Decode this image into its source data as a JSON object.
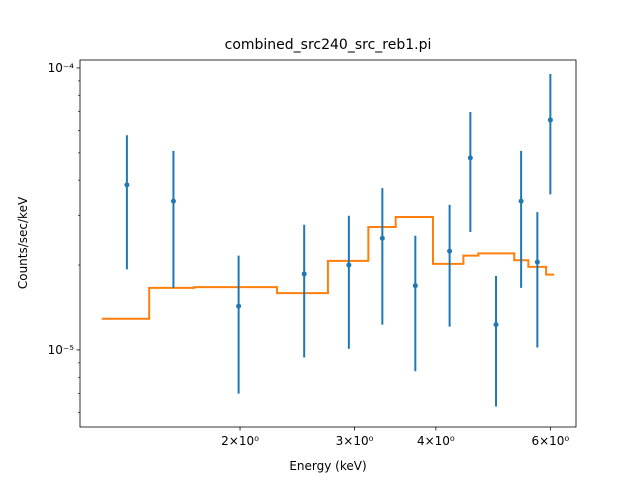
{
  "chart_data": {
    "type": "errorbar",
    "title": "combined_src240_src_reb1.pi",
    "xlabel": "Energy (keV)",
    "ylabel": "Counts/sec/keV",
    "xscale": "log",
    "yscale": "log",
    "xlim": [
      1.135,
      6.57
    ],
    "ylim": [
      5.33e-06,
      0.0001067
    ],
    "xticks": [
      {
        "value": 2,
        "label": "2×10⁰"
      },
      {
        "value": 3,
        "label": "3×10⁰"
      },
      {
        "value": 4,
        "label": "4×10⁰"
      },
      {
        "value": 6,
        "label": "6×10⁰"
      }
    ],
    "yticks": [
      {
        "value": 1e-05,
        "label": "10⁻⁵"
      },
      {
        "value": 0.0001,
        "label": "10⁻⁴"
      }
    ],
    "yminorticks": [
      6e-06,
      7e-06,
      8e-06,
      9e-06,
      2e-05,
      3e-05,
      4e-05,
      5e-05,
      6e-05,
      7e-05,
      8e-05,
      9e-05
    ],
    "series": [
      {
        "type": "errorbar",
        "color": "#1f77b4",
        "x": [
          1.34,
          1.58,
          1.99,
          2.51,
          2.94,
          3.31,
          3.72,
          4.2,
          4.52,
          4.95,
          5.41,
          5.73,
          6.0
        ],
        "values": [
          3.85e-05,
          3.37e-05,
          1.43e-05,
          1.86e-05,
          2e-05,
          2.49e-05,
          1.69e-05,
          2.24e-05,
          4.8e-05,
          1.23e-05,
          3.37e-05,
          2.05e-05,
          6.54e-05
        ],
        "yerr": [
          1.92e-05,
          1.71e-05,
          7.3e-06,
          9.2e-06,
          9.9e-06,
          1.26e-05,
          8.5e-06,
          1.03e-05,
          2.18e-05,
          6e-06,
          1.71e-05,
          1.03e-05,
          2.98e-05
        ]
      },
      {
        "type": "step",
        "color": "#ff7f0e",
        "bins": [
          1.23,
          1.45,
          1.7,
          2.28,
          2.73,
          3.15,
          3.47,
          3.96,
          4.41,
          4.65,
          5.28,
          5.55,
          5.91,
          6.06
        ],
        "values": [
          1.29e-05,
          1.66e-05,
          1.67e-05,
          1.59e-05,
          2.07e-05,
          2.73e-05,
          2.96e-05,
          2.02e-05,
          2.16e-05,
          2.2e-05,
          2.08e-05,
          1.97e-05,
          1.85e-05
        ]
      }
    ]
  }
}
